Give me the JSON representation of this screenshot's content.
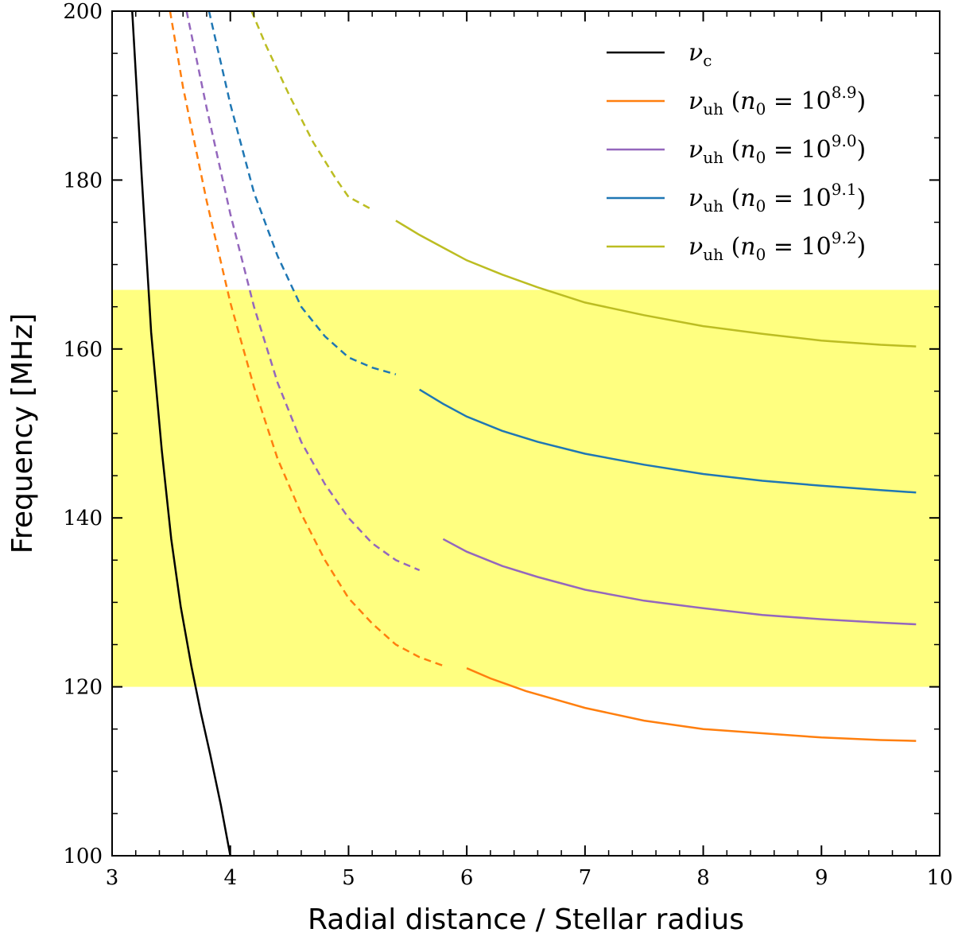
{
  "chart_data": {
    "type": "line",
    "title": "",
    "xlabel": "Radial distance / Stellar radius",
    "ylabel": "Frequency [MHz]",
    "xlim": [
      3,
      10
    ],
    "ylim": [
      100,
      200
    ],
    "xticks": [
      3,
      4,
      5,
      6,
      7,
      8,
      9,
      10
    ],
    "yticks": [
      100,
      120,
      140,
      160,
      180,
      200
    ],
    "grid": false,
    "legend_position": "top-right",
    "shaded_band": {
      "y_from": 120,
      "y_to": 167,
      "color": "#ffff80"
    },
    "series": [
      {
        "name": "ν_c",
        "legend": {
          "main": "ν",
          "sub": "c",
          "paren": ""
        },
        "color": "#000000",
        "segments": [
          {
            "style": "solid",
            "x": [
              3.17,
              3.25,
              3.33,
              3.42,
              3.5,
              3.58,
              3.67,
              3.75,
              3.83,
              3.92,
              4.0
            ],
            "y": [
              200,
              180.5,
              162,
              148,
              137.5,
              129.5,
              122.5,
              117,
              112,
              106,
              100
            ]
          }
        ]
      },
      {
        "name": "ν_uh (n_0 = 10^8.9)",
        "legend": {
          "main": "ν",
          "sub": "uh",
          "paren": "(n",
          "paren_sub": "0",
          "eq": " = 10",
          "sup": "8.9",
          "close": ")"
        },
        "color": "#ff7f0e",
        "segments": [
          {
            "style": "dashed",
            "x": [
              3.49,
              3.6,
              3.8,
              4.0,
              4.2,
              4.4,
              4.6,
              4.8,
              5.0,
              5.2,
              5.4,
              5.6,
              5.8
            ],
            "y": [
              200,
              191,
              177.5,
              165.5,
              155.5,
              147,
              140.5,
              135,
              130.5,
              127.5,
              125,
              123.5,
              122.5
            ]
          },
          {
            "style": "solid",
            "x": [
              6.0,
              6.2,
              6.5,
              7.0,
              7.5,
              8.0,
              8.5,
              9.0,
              9.5,
              9.8
            ],
            "y": [
              122.2,
              121,
              119.5,
              117.5,
              116,
              115,
              114.5,
              114,
              113.7,
              113.6
            ]
          }
        ]
      },
      {
        "name": "ν_uh (n_0 = 10^9.0)",
        "legend": {
          "main": "ν",
          "sub": "uh",
          "paren": "(n",
          "paren_sub": "0",
          "eq": " = 10",
          "sup": "9.0",
          "close": ")"
        },
        "color": "#9467bd",
        "segments": [
          {
            "style": "dashed",
            "x": [
              3.63,
              3.8,
              4.0,
              4.2,
              4.4,
              4.6,
              4.8,
              5.0,
              5.2,
              5.4,
              5.6
            ],
            "y": [
              200,
              188.5,
              176,
              165,
              156,
              149,
              144,
              140,
              137,
              135,
              133.8
            ]
          },
          {
            "style": "solid",
            "x": [
              5.8,
              6.0,
              6.3,
              6.6,
              7.0,
              7.5,
              8.0,
              8.5,
              9.0,
              9.5,
              9.8
            ],
            "y": [
              137.5,
              136,
              134.3,
              133,
              131.5,
              130.2,
              129.3,
              128.5,
              128,
              127.6,
              127.4
            ]
          }
        ]
      },
      {
        "name": "ν_uh (n_0 = 10^9.1)",
        "legend": {
          "main": "ν",
          "sub": "uh",
          "paren": "(n",
          "paren_sub": "0",
          "eq": " = 10",
          "sup": "9.1",
          "close": ")"
        },
        "color": "#1f77b4",
        "segments": [
          {
            "style": "dashed",
            "x": [
              3.82,
              4.0,
              4.2,
              4.4,
              4.6,
              4.8,
              5.0,
              5.2,
              5.4
            ],
            "y": [
              200,
              189,
              178.5,
              171,
              165,
              161.5,
              159,
              157.8,
              157
            ]
          },
          {
            "style": "solid",
            "x": [
              5.6,
              5.8,
              6.0,
              6.3,
              6.6,
              7.0,
              7.5,
              8.0,
              8.5,
              9.0,
              9.5,
              9.8
            ],
            "y": [
              155.2,
              153.5,
              152,
              150.3,
              149,
              147.6,
              146.3,
              145.2,
              144.4,
              143.8,
              143.3,
              143
            ]
          }
        ]
      },
      {
        "name": "ν_uh (n_0 = 10^9.2)",
        "legend": {
          "main": "ν",
          "sub": "uh",
          "paren": "(n",
          "paren_sub": "0",
          "eq": " = 10",
          "sup": "9.2",
          "close": ")"
        },
        "color": "#bcbd22",
        "segments": [
          {
            "style": "dashed",
            "x": [
              4.18,
              4.3,
              4.5,
              4.7,
              4.9,
              5.0,
              5.2
            ],
            "y": [
              200,
              196,
              190,
              184.5,
              180,
              178,
              176.5
            ]
          },
          {
            "style": "solid",
            "x": [
              5.4,
              5.6,
              5.8,
              6.0,
              6.3,
              6.6,
              7.0,
              7.5,
              8.0,
              8.5,
              9.0,
              9.5,
              9.8
            ],
            "y": [
              175.2,
              173.5,
              172,
              170.5,
              168.8,
              167.3,
              165.5,
              164,
              162.7,
              161.8,
              161,
              160.5,
              160.3
            ]
          }
        ]
      }
    ]
  }
}
